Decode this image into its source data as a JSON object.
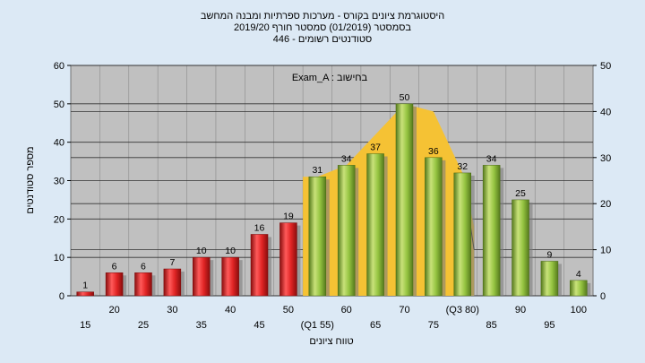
{
  "chart_data": {
    "type": "bar",
    "title_lines": [
      "היסטוגרמת ציונים בקורס - מערכות ספרתיות ומבנה המחשב",
      "בסמסטר  (01/2019)  סמסטר חורף 2019/20",
      "446 - סטודנטים רשומים"
    ],
    "annotation": "Exam_A : בחישוב",
    "xlabel": "טווח ציונים",
    "ylabel": "מספר סטודנטים",
    "ylim": [
      0,
      60
    ],
    "y2lim": [
      0,
      50
    ],
    "yticks": [
      "0",
      "10",
      "20",
      "30",
      "40",
      "50",
      "60"
    ],
    "y2ticks": [
      "0",
      "10",
      "20",
      "30",
      "40",
      "50"
    ],
    "categories": [
      "15",
      "20",
      "25",
      "30",
      "35",
      "40",
      "45",
      "50",
      "(Q1 55)",
      "60",
      "65",
      "70",
      "75",
      "(Q3 80)",
      "85",
      "90",
      "95",
      "100"
    ],
    "values": [
      1,
      6,
      6,
      7,
      10,
      10,
      16,
      19,
      31,
      34,
      37,
      50,
      36,
      32,
      34,
      25,
      9,
      4
    ],
    "value_labels": [
      "1",
      "6",
      "6",
      "7",
      "10",
      "10",
      "16",
      "19",
      "31",
      "34",
      "37",
      "50",
      "36",
      "32",
      "34",
      "25",
      "9",
      "4"
    ],
    "bar_colors": [
      "#d42020",
      "#d42020",
      "#d42020",
      "#d42020",
      "#d42020",
      "#d42020",
      "#d42020",
      "#d42020",
      "#8fbf3f",
      "#8fbf3f",
      "#8fbf3f",
      "#8fbf3f",
      "#8fbf3f",
      "#8fbf3f",
      "#8fbf3f",
      "#8fbf3f",
      "#8fbf3f",
      "#8fbf3f"
    ],
    "distribution_curve": {
      "start_category_index": 8,
      "end_category_index": 13,
      "values": [
        31,
        34,
        42,
        50,
        48,
        32
      ],
      "color": "#f5c234"
    },
    "grid": true,
    "legend": "none",
    "colors": {
      "background": "#dce9f5",
      "plot_area": "#c0c0c0",
      "fail_bar": "#d42020",
      "pass_bar": "#8fbf3f",
      "curve_fill": "#f5c234"
    }
  }
}
